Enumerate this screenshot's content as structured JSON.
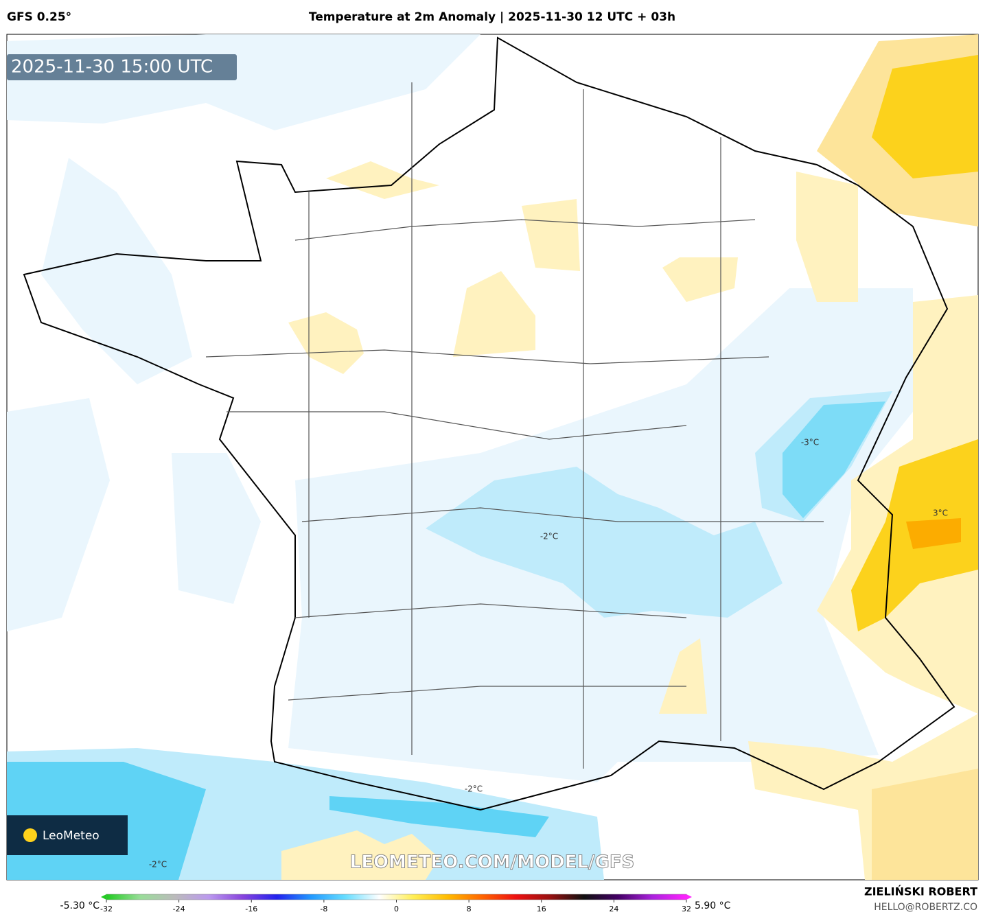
{
  "header": {
    "model": "GFS 0.25°",
    "title": "Temperature at 2m Anomaly | 2025-11-30 12 UTC + 03h"
  },
  "map": {
    "timestamp": "2025-11-30 15:00 UTC",
    "contour_labels": [
      "-3°C",
      "3°C",
      "-2°C",
      "-2°C",
      "-2°C"
    ],
    "watermark": "LEOMETEO.COM/MODEL/GFS",
    "logo": "LeoMeteo"
  },
  "colorbar": {
    "min_label": "-5.30 °C",
    "max_label": "5.90 °C",
    "range": [
      -32,
      32
    ],
    "ticks": [
      -32,
      -24,
      -16,
      -8,
      0,
      8,
      16,
      24,
      32
    ],
    "colors": [
      "#22cc22",
      "#99dd99",
      "#bbbbbb",
      "#bb99ee",
      "#8844dd",
      "#2222ee",
      "#2299ff",
      "#66ddff",
      "#ffffff",
      "#ffee55",
      "#ffbb00",
      "#ff6600",
      "#ee1111",
      "#991111",
      "#111111",
      "#440066",
      "#aa22dd",
      "#ff22ff"
    ]
  },
  "footer": {
    "author": "ZIELIŃSKI ROBERT",
    "email": "HELLO@ROBERTZ.CO"
  }
}
